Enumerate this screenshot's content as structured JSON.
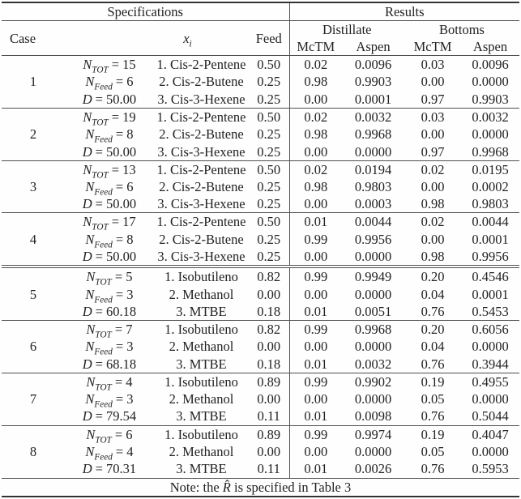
{
  "table": {
    "header": {
      "specifications": "Specifications",
      "results": "Results",
      "case": "Case",
      "xi": {
        "sym": "x",
        "sub": "i"
      },
      "feed": "Feed",
      "distillate": "Distillate",
      "bottoms": "Bottoms",
      "mctm": "McTM",
      "aspen": "Aspen"
    },
    "cases": [
      {
        "case": "1",
        "rows": [
          {
            "sym": "N",
            "sub": "TOT",
            "val": "= 15",
            "comp": "1. Cis-2-Pentene",
            "feed": "0.50",
            "dm": "0.02",
            "da": "0.0096",
            "bm": "0.03",
            "ba": "0.0096"
          },
          {
            "sym": "N",
            "sub": "Feed",
            "val": "= 6",
            "comp": "2. Cis-2-Butene",
            "feed": "0.25",
            "dm": "0.98",
            "da": "0.9903",
            "bm": "0.00",
            "ba": "0.0000"
          },
          {
            "sym": "D",
            "sub": "",
            "val": "= 50.00",
            "comp": "3. Cis-3-Hexene",
            "feed": "0.25",
            "dm": "0.00",
            "da": "0.0001",
            "bm": "0.97",
            "ba": "0.9903"
          }
        ]
      },
      {
        "case": "2",
        "rows": [
          {
            "sym": "N",
            "sub": "TOT",
            "val": "= 19",
            "comp": "1. Cis-2-Pentene",
            "feed": "0.50",
            "dm": "0.02",
            "da": "0.0032",
            "bm": "0.03",
            "ba": "0.0032"
          },
          {
            "sym": "N",
            "sub": "Feed",
            "val": "= 8",
            "comp": "2. Cis-2-Butene",
            "feed": "0.25",
            "dm": "0.98",
            "da": "0.9968",
            "bm": "0.00",
            "ba": "0.0000"
          },
          {
            "sym": "D",
            "sub": "",
            "val": "= 50.00",
            "comp": "3. Cis-3-Hexene",
            "feed": "0.25",
            "dm": "0.00",
            "da": "0.0000",
            "bm": "0.97",
            "ba": "0.9968"
          }
        ]
      },
      {
        "case": "3",
        "rows": [
          {
            "sym": "N",
            "sub": "TOT",
            "val": "= 13",
            "comp": "1. Cis-2-Pentene",
            "feed": "0.50",
            "dm": "0.02",
            "da": "0.0194",
            "bm": "0.02",
            "ba": "0.0195"
          },
          {
            "sym": "N",
            "sub": "Feed",
            "val": "= 6",
            "comp": "2. Cis-2-Butene",
            "feed": "0.25",
            "dm": "0.98",
            "da": "0.9803",
            "bm": "0.00",
            "ba": "0.0002"
          },
          {
            "sym": "D",
            "sub": "",
            "val": "= 50.00",
            "comp": "3. Cis-3-Hexene",
            "feed": "0.25",
            "dm": "0.00",
            "da": "0.0003",
            "bm": "0.98",
            "ba": "0.9803"
          }
        ]
      },
      {
        "case": "4",
        "rows": [
          {
            "sym": "N",
            "sub": "TOT",
            "val": "= 17",
            "comp": "1. Cis-2-Pentene",
            "feed": "0.50",
            "dm": "0.01",
            "da": "0.0044",
            "bm": "0.02",
            "ba": "0.0044"
          },
          {
            "sym": "N",
            "sub": "Feed",
            "val": "= 8",
            "comp": "2. Cis-2-Butene",
            "feed": "0.25",
            "dm": "0.99",
            "da": "0.9956",
            "bm": "0.00",
            "ba": "0.0001"
          },
          {
            "sym": "D",
            "sub": "",
            "val": "= 50.00",
            "comp": "3. Cis-3-Hexene",
            "feed": "0.25",
            "dm": "0.00",
            "da": "0.0000",
            "bm": "0.98",
            "ba": "0.9956"
          }
        ]
      },
      {
        "case": "5",
        "rows": [
          {
            "sym": "N",
            "sub": "TOT",
            "val": "= 5",
            "comp": "1. Isobutileno",
            "feed": "0.82",
            "dm": "0.99",
            "da": "0.9949",
            "bm": "0.20",
            "ba": "0.4546"
          },
          {
            "sym": "N",
            "sub": "Feed",
            "val": "= 3",
            "comp": "2. Methanol",
            "feed": "0.00",
            "dm": "0.00",
            "da": "0.0000",
            "bm": "0.04",
            "ba": "0.0001"
          },
          {
            "sym": "D",
            "sub": "",
            "val": "= 60.18",
            "comp": "3. MTBE",
            "feed": "0.18",
            "dm": "0.01",
            "da": "0.0051",
            "bm": "0.76",
            "ba": "0.5453"
          }
        ]
      },
      {
        "case": "6",
        "rows": [
          {
            "sym": "N",
            "sub": "TOT",
            "val": "= 7",
            "comp": "1. Isobutileno",
            "feed": "0.82",
            "dm": "0.99",
            "da": "0.9968",
            "bm": "0.20",
            "ba": "0.6056"
          },
          {
            "sym": "N",
            "sub": "Feed",
            "val": "= 3",
            "comp": "2. Methanol",
            "feed": "0.00",
            "dm": "0.00",
            "da": "0.0000",
            "bm": "0.04",
            "ba": "0.0000"
          },
          {
            "sym": "D",
            "sub": "",
            "val": "= 68.18",
            "comp": "3. MTBE",
            "feed": "0.18",
            "dm": "0.01",
            "da": "0.0032",
            "bm": "0.76",
            "ba": "0.3944"
          }
        ]
      },
      {
        "case": "7",
        "rows": [
          {
            "sym": "N",
            "sub": "TOT",
            "val": "= 4",
            "comp": "1. Isobutileno",
            "feed": "0.89",
            "dm": "0.99",
            "da": "0.9902",
            "bm": "0.19",
            "ba": "0.4955"
          },
          {
            "sym": "N",
            "sub": "Feed",
            "val": "= 3",
            "comp": "2. Methanol",
            "feed": "0.00",
            "dm": "0.00",
            "da": "0.0000",
            "bm": "0.05",
            "ba": "0.0000"
          },
          {
            "sym": "D",
            "sub": "",
            "val": "= 79.54",
            "comp": "3. MTBE",
            "feed": "0.11",
            "dm": "0.01",
            "da": "0.0098",
            "bm": "0.76",
            "ba": "0.5044"
          }
        ]
      },
      {
        "case": "8",
        "rows": [
          {
            "sym": "N",
            "sub": "TOT",
            "val": "= 6",
            "comp": "1. Isobutileno",
            "feed": "0.89",
            "dm": "0.99",
            "da": "0.9974",
            "bm": "0.19",
            "ba": "0.4047"
          },
          {
            "sym": "N",
            "sub": "Feed",
            "val": "= 4",
            "comp": "2. Methanol",
            "feed": "0.00",
            "dm": "0.00",
            "da": "0.0000",
            "bm": "0.05",
            "ba": "0.0000"
          },
          {
            "sym": "D",
            "sub": "",
            "val": "= 70.31",
            "comp": "3. MTBE",
            "feed": "0.11",
            "dm": "0.01",
            "da": "0.0026",
            "bm": "0.76",
            "ba": "0.5953"
          }
        ]
      }
    ],
    "note": {
      "prefix": "Note: the ",
      "symbol": "R̂",
      "suffix": " is specified in Table 3"
    }
  }
}
